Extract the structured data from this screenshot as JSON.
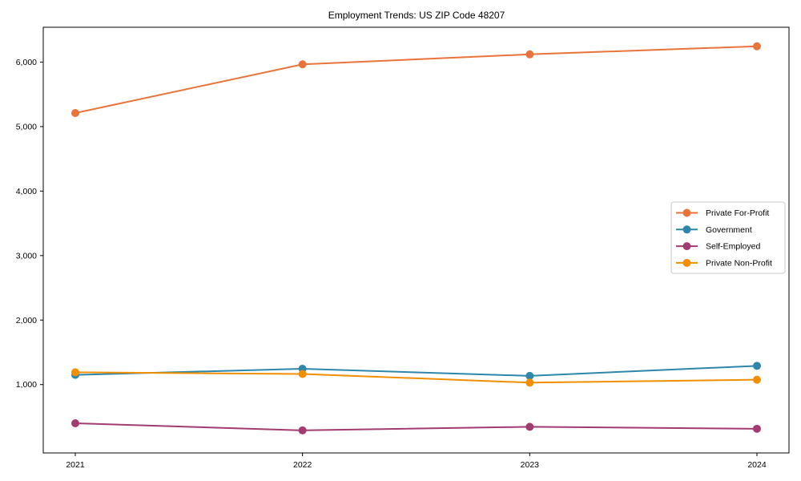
{
  "chart_data": {
    "type": "line",
    "title": "Employment Trends: US ZIP Code 48207",
    "x": [
      "2021",
      "2022",
      "2023",
      "2024"
    ],
    "series": [
      {
        "name": "Private For-Profit",
        "color": "#E8743B",
        "values": [
          5210,
          5965,
          6120,
          6245
        ]
      },
      {
        "name": "Government",
        "color": "#2E86AB",
        "values": [
          1150,
          1245,
          1135,
          1290
        ]
      },
      {
        "name": "Self-Employed",
        "color": "#A23B72",
        "values": [
          400,
          290,
          345,
          315
        ]
      },
      {
        "name": "Private Non-Profit",
        "color": "#F18F01",
        "values": [
          1190,
          1165,
          1030,
          1075
        ]
      }
    ],
    "ylim": [
      -60,
      6540
    ],
    "yticks": {
      "values": [
        1000,
        2000,
        3000,
        4000,
        5000,
        6000
      ],
      "labels": [
        "1,000",
        "2,000",
        "3,000",
        "4,000",
        "5,000",
        "6,000"
      ]
    },
    "xlabel": "",
    "ylabel": "",
    "grid": false,
    "legend": {
      "position": "center-right",
      "entries": [
        "Private For-Profit",
        "Government",
        "Self-Employed",
        "Private Non-Profit"
      ]
    },
    "axis_color": "#000000",
    "legend_border_color": "#c9c9c9",
    "background": "#ffffff"
  }
}
